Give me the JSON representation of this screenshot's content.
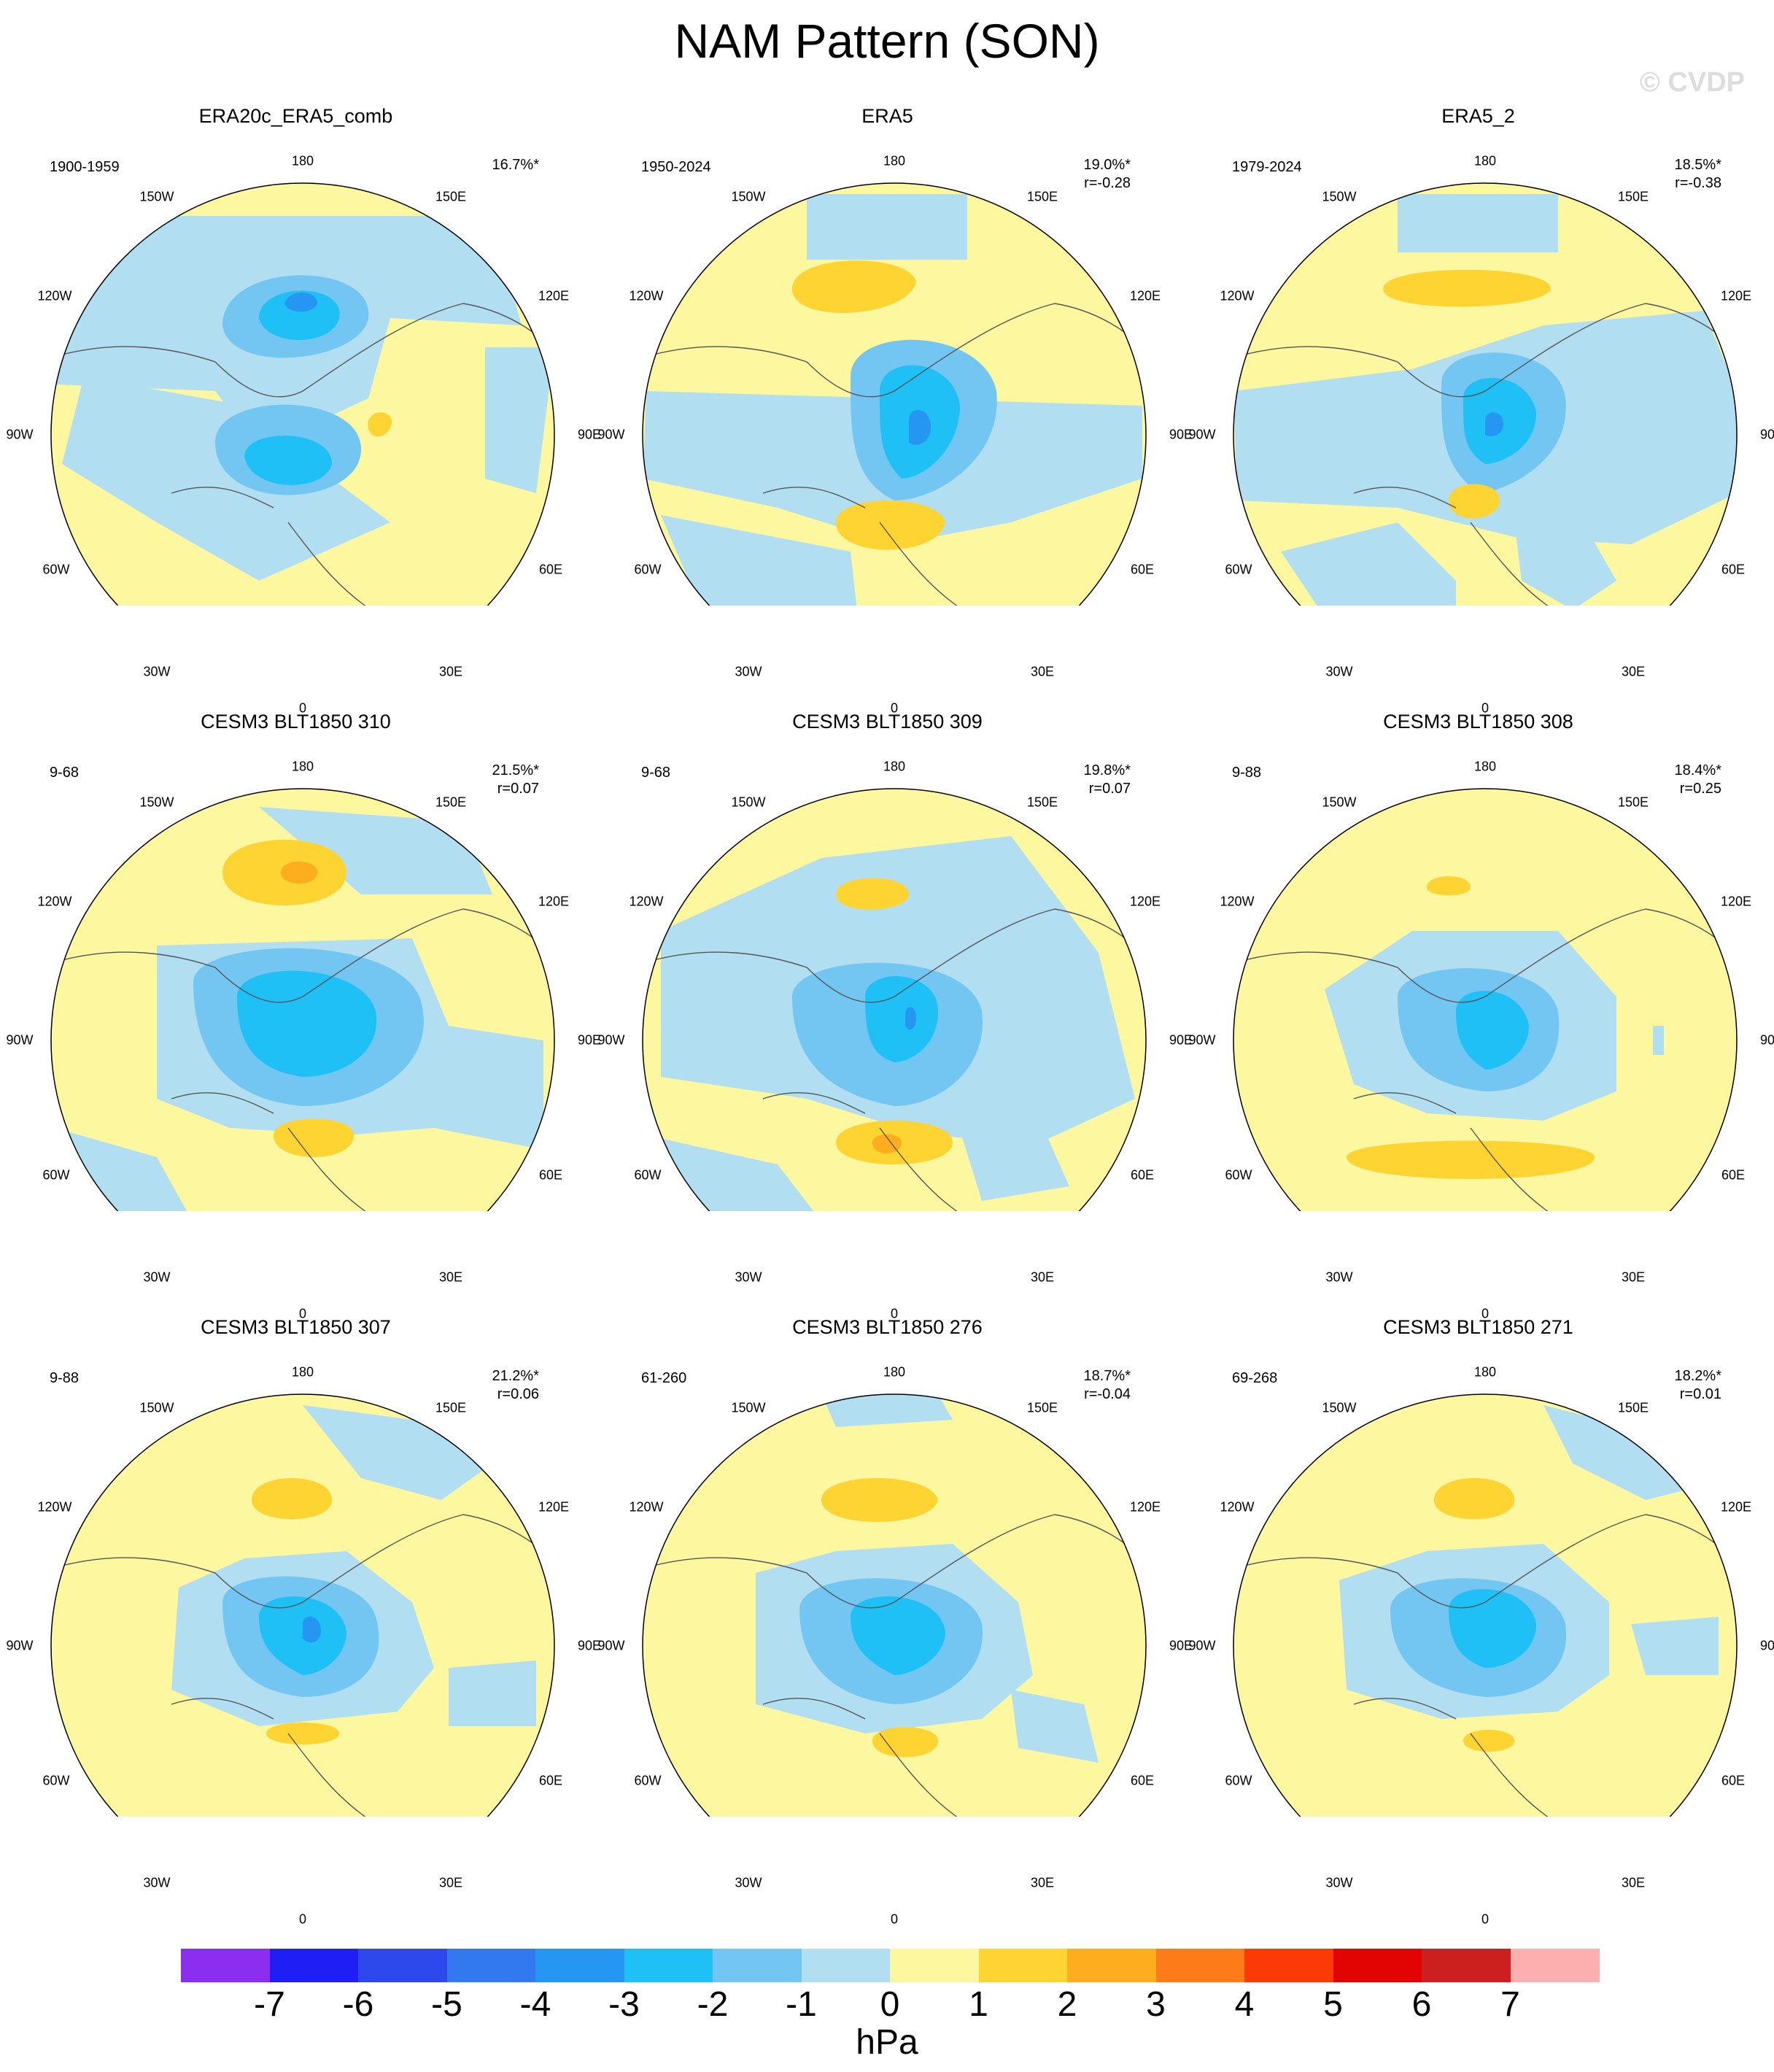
{
  "title": "NAM Pattern (SON)",
  "watermark": "© CVDP",
  "lon_labels": {
    "l180": "180",
    "l150w": "150W",
    "l150e": "150E",
    "l120w": "120W",
    "l120e": "120E",
    "l90w": "90W",
    "l90e": "90E",
    "l60w": "60W",
    "l60e": "60E",
    "l30w": "30W",
    "l30e": "30E",
    "l0": "0"
  },
  "panels": [
    {
      "name": "ERA20c_ERA5_comb",
      "period": "1900-1959",
      "pct": "16.7%*",
      "r": ""
    },
    {
      "name": "ERA5",
      "period": "1950-2024",
      "pct": "19.0%*",
      "r": "r=-0.28"
    },
    {
      "name": "ERA5_2",
      "period": "1979-2024",
      "pct": "18.5%*",
      "r": "r=-0.38"
    },
    {
      "name": "CESM3 BLT1850 310",
      "period": "9-68",
      "pct": "21.5%*",
      "r": "r=0.07"
    },
    {
      "name": "CESM3 BLT1850 309",
      "period": "9-68",
      "pct": "19.8%*",
      "r": "r=0.07"
    },
    {
      "name": "CESM3 BLT1850 308",
      "period": "9-88",
      "pct": "18.4%*",
      "r": "r=0.25"
    },
    {
      "name": "CESM3 BLT1850 307",
      "period": "9-88",
      "pct": "21.2%*",
      "r": "r=0.06"
    },
    {
      "name": "CESM3 BLT1850 276",
      "period": "61-260",
      "pct": "18.7%*",
      "r": "r=-0.04"
    },
    {
      "name": "CESM3 BLT1850 271",
      "period": "69-268",
      "pct": "18.2%*",
      "r": "r=0.01"
    }
  ],
  "colorbar": {
    "units": "hPa",
    "ticks": [
      "-7",
      "-6",
      "-5",
      "-4",
      "-3",
      "-2",
      "-1",
      "0",
      "1",
      "2",
      "3",
      "4",
      "5",
      "6",
      "7"
    ],
    "colors": [
      "#8c2ef0",
      "#1f1ff5",
      "#2d48eb",
      "#3278ee",
      "#2596f2",
      "#1ec0f5",
      "#72c6f1",
      "#b2def2",
      "#fdf7a0",
      "#fdd432",
      "#fdad1e",
      "#fd7b18",
      "#fc3a06",
      "#e20303",
      "#cc1f1f",
      "#fcafaf"
    ]
  },
  "chart_data": {
    "type": "polar stereographic contour maps",
    "variable": "SLP anomaly (NAM pattern, SON)",
    "units": "hPa",
    "levels": [
      -7,
      -6,
      -5,
      -4,
      -3,
      -2,
      -1,
      0,
      1,
      2,
      3,
      4,
      5,
      6,
      7
    ],
    "map_label_order": [
      "180",
      "150E",
      "120E",
      "90E",
      "60E",
      "30E",
      "0",
      "30W",
      "60W",
      "90W",
      "120W",
      "150W"
    ]
  }
}
